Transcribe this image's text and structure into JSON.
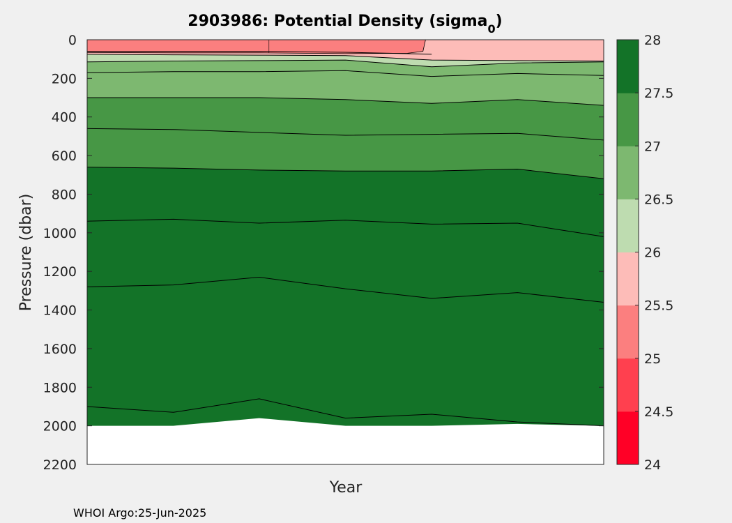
{
  "chart_data": {
    "type": "contour",
    "title": "2903986: Potential Density (sigma",
    "title_subscript": "0",
    "title_suffix": ")",
    "xlabel": "Year",
    "ylabel": "Pressure (dbar)",
    "ylim": [
      0,
      2200
    ],
    "y_reversed": true,
    "yticks": [
      0,
      200,
      400,
      600,
      800,
      1000,
      1200,
      1400,
      1600,
      1800,
      2000,
      2200
    ],
    "profile_x": [
      0,
      0.167,
      0.333,
      0.5,
      0.667,
      0.833,
      1.0
    ],
    "max_pressure": [
      2000,
      2000,
      1960,
      2000,
      2000,
      1990,
      2000
    ],
    "contours": [
      {
        "level": 25.0,
        "depth": [
          60,
          60,
          60,
          65,
          75,
          null,
          null
        ]
      },
      {
        "level": 25.5,
        "depth": [
          75,
          78,
          80,
          82,
          105,
          108,
          110
        ]
      },
      {
        "level": 26.0,
        "depth": [
          115,
          110,
          108,
          105,
          140,
          120,
          115
        ]
      },
      {
        "level": 26.5,
        "depth": [
          170,
          165,
          165,
          160,
          190,
          175,
          185
        ]
      },
      {
        "level": 27.0,
        "depth": [
          300,
          300,
          300,
          310,
          330,
          310,
          340
        ]
      },
      {
        "level": 27.25,
        "depth": [
          460,
          465,
          480,
          495,
          490,
          485,
          520
        ]
      },
      {
        "level": 27.5,
        "depth": [
          660,
          665,
          675,
          680,
          680,
          670,
          720
        ]
      },
      {
        "level": 27.6,
        "depth": [
          940,
          930,
          950,
          935,
          955,
          950,
          1020
        ]
      },
      {
        "level": 27.7,
        "depth": [
          1280,
          1270,
          1230,
          1290,
          1340,
          1310,
          1360
        ]
      },
      {
        "level": 27.8,
        "depth": [
          1900,
          1930,
          1860,
          1960,
          1940,
          1980,
          2000
        ]
      }
    ],
    "colorbar": {
      "min": 24,
      "max": 28,
      "ticks": [
        "24",
        "24.5",
        "25",
        "25.5",
        "26",
        "26.5",
        "27",
        "27.5",
        "28"
      ],
      "colors": [
        "#ff0026",
        "#ff404f",
        "#fb7f7f",
        "#fdbcb8",
        "#bedcb0",
        "#7db870",
        "#479745",
        "#137328"
      ]
    },
    "grid": false
  },
  "footer": "WHOI Argo:25-Jun-2025"
}
